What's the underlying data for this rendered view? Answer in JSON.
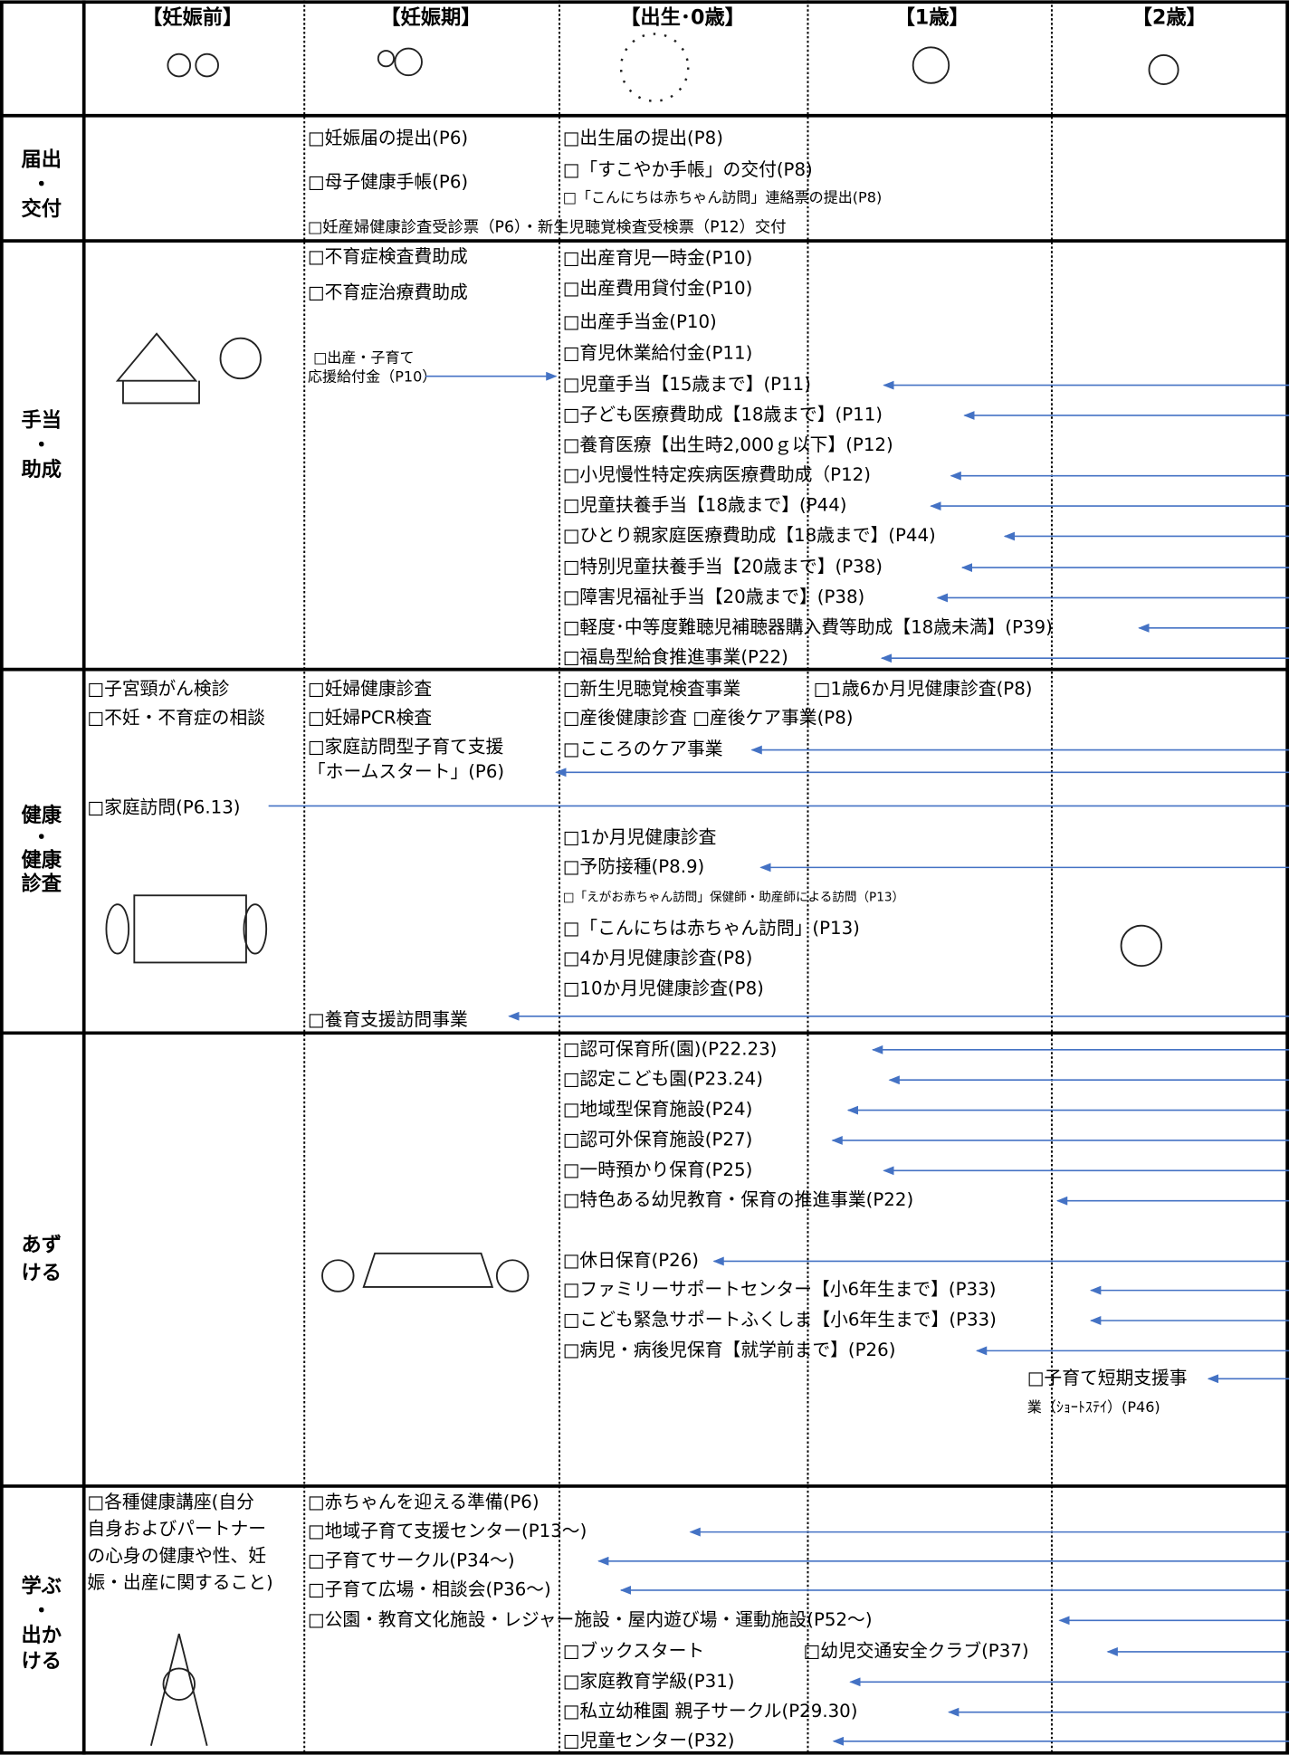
{
  "header": [
    "【妊娠前】",
    "【妊娠期】",
    "【出生･0歳】",
    "【1歳】",
    "【2歳】"
  ],
  "rows": [
    {
      "label": [
        "届出",
        "・",
        "交付"
      ],
      "items": [
        "□妊娠届の提出(P6)",
        "□母子健康手帳(P6)",
        "□妊産婦健康診査受診票（P6）・新生児聴覚検査受検票（P12）交付",
        "□出生届の提出(P8)",
        "□「すこやか手帳」の交付(P8)",
        "□「こんにちは赤ちゃん訪問」連絡票の提出(P8)"
      ]
    },
    {
      "label": [
        "手当",
        "・",
        "助成"
      ],
      "items": [
        "□不育症検査費助成",
        "□不育症治療費助成",
        "□出産・子育て",
        "応援給付金（P10）",
        "□出産育児一時金(P10)",
        "□出産費用貸付金(P10)",
        "□出産手当金(P10)",
        "□育児休業給付金(P11)",
        "□児童手当【15歳まで】(P11)",
        "□子ども医療費助成【18歳まで】(P11)",
        "□養育医療【出生時2,000ｇ以下】(P12)",
        "□小児慢性特定疾病医療費助成（P12)",
        "□児童扶養手当【18歳まで】(P44)",
        "□ひとり親家庭医療費助成【18歳まで】(P44)",
        "□特別児童扶養手当【20歳まで】(P38)",
        "□障害児福祉手当【20歳まで】(P38)",
        "□軽度･中等度難聴児補聴器購入費等助成【18歳未満】(P39)",
        "□福島型給食推進事業(P22)"
      ]
    },
    {
      "label": [
        "健康",
        "・",
        "健康",
        "診査"
      ],
      "items": [
        "□子宮頸がん検診",
        "□不妊・不育症の相談",
        "□家庭訪問(P6.13)",
        "□妊婦健康診査",
        "□妊婦PCR検査",
        "□家庭訪問型子育て支援",
        "「ホームスタート」(P6)",
        "□養育支援訪問事業",
        "□新生児聴覚検査事業",
        "□1歳6か月児健康診査(P8)",
        "□産後健康診査 □産後ケア事業(P8)",
        "□こころのケア事業",
        "□1か月児健康診査",
        "□予防接種(P8.9)",
        "□「えがお赤ちゃん訪問」保健師・助産師による訪問（P13）",
        "□「こんにちは赤ちゃん訪問」(P13)",
        "□4か月児健康診査(P8)",
        "□10か月児健康診査(P8)"
      ]
    },
    {
      "label": [
        "あず",
        "ける"
      ],
      "items": [
        "□認可保育所(園)(P22.23)",
        "□認定こども園(P23.24)",
        "□地域型保育施設(P24)",
        "□認可外保育施設(P27)",
        "□一時預かり保育(P25)",
        "□特色ある幼児教育・保育の推進事業(P22)",
        "□休日保育(P26)",
        "□ファミリーサポートセンター【小6年生まで】(P33)",
        "□こども緊急サポートふくしま【小6年生まで】(P33)",
        "□病児・病後児保育【就学前まで】(P26)",
        "□子育て短期支援事",
        "業（ｼｮｰﾄｽﾃｲ）(P46)"
      ]
    },
    {
      "label": [
        "学ぶ",
        "・",
        "出か",
        "ける"
      ],
      "items": [
        "□各種健康講座(自分",
        "自身およびパートナー",
        "の心身の健康や性、妊",
        "娠・出産に関すること)",
        "□赤ちゃんを迎える準備(P6)",
        "□地域子育て支援センター(P13～)",
        "□子育てサークル(P34～)",
        "□子育て広場・相談会(P36～)",
        "□公園・教育文化施設・レジャー施設・屋内遊び場・運動施設(P52～)",
        "□ブックスタート",
        "□幼児交通安全クラブ(P37)",
        "□家庭教育学級(P31)",
        "□私立幼稚園 親子サークル(P29.30)",
        "□児童センター(P32)"
      ]
    }
  ]
}
